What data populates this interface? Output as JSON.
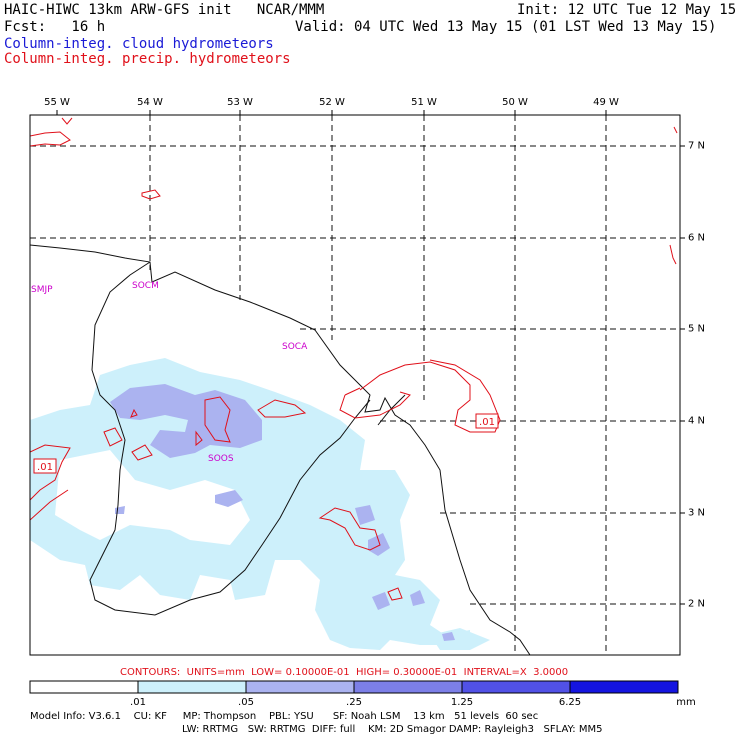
{
  "header": {
    "title_left": "HAIC-HIWC 13km ARW-GFS init   NCAR/MMM",
    "fcst": "Fcst:   16 h",
    "init": "Init: 12 UTC Tue 12 May 15",
    "valid": "Valid: 04 UTC Wed 13 May 15 (01 LST Wed 13 May 15)",
    "field_cloud": "Column-integ. cloud hydrometeors",
    "field_precip": "Column-integ. precip. hydrometeors"
  },
  "axes": {
    "lon_labels": [
      "55 W",
      "54 W",
      "53 W",
      "52 W",
      "51 W",
      "50 W",
      "49 W"
    ],
    "lat_labels": [
      "7 N",
      "6 N",
      "5 N",
      "4 N",
      "3 N",
      "2 N"
    ]
  },
  "stations": [
    "SMJP",
    "SOCM",
    "SOCA",
    "SOOS"
  ],
  "contour_labels": [
    ".01",
    ".01"
  ],
  "contours_info": "CONTOURS:  UNITS=mm  LOW= 0.10000E-01  HIGH= 0.30000E-01  INTERVAL=X  3.0000",
  "colorbar": {
    "labels": [
      ".01",
      ".05",
      ".25",
      "1.25",
      "6.25"
    ],
    "units": "mm",
    "colors": [
      "#ffffff",
      "#cdf0fb",
      "#abb3f0",
      "#7c7fe7",
      "#5151e6",
      "#1414e0"
    ]
  },
  "model_info": {
    "line1": "Model Info: V3.6.1    CU: KF     MP: Thompson    PBL: YSU      SF: Noah LSM    13 km   51 levels  60 sec",
    "line2": "LW: RRTMG   SW: RRTMG  DIFF: full    KM: 2D Smagor DAMP: Rayleigh3   SFLAY: MM5"
  },
  "colors": {
    "cloud": "#1a1ad6",
    "precip": "#e0101a",
    "station": "#cc00cc"
  }
}
